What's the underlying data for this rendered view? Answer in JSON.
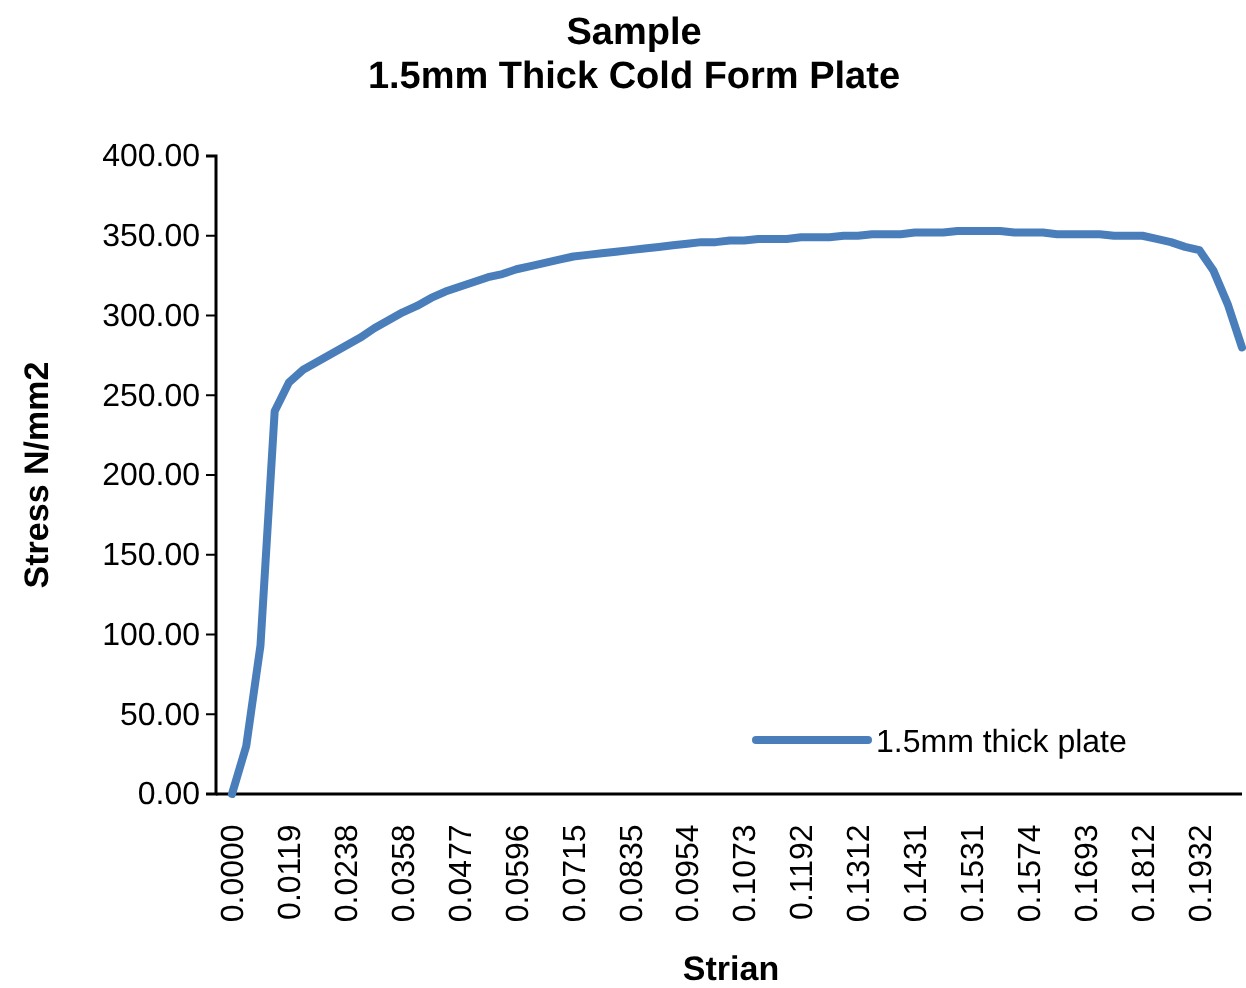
{
  "chart_data": {
    "type": "line",
    "title": "Sample",
    "subtitle": "1.5mm Thick Cold Form Plate",
    "xlabel": "Strian",
    "ylabel": "Stress N/mm2",
    "categories": [
      "0.0000",
      null,
      null,
      null,
      "0.0119",
      null,
      null,
      null,
      "0.0238",
      null,
      null,
      null,
      "0.0358",
      null,
      null,
      null,
      "0.0477",
      null,
      null,
      null,
      "0.0596",
      null,
      null,
      null,
      "0.0715",
      null,
      null,
      null,
      "0.0835",
      null,
      null,
      null,
      "0.0954",
      null,
      null,
      null,
      "0.1073",
      null,
      null,
      null,
      "0.1192",
      null,
      null,
      null,
      "0.1312",
      null,
      null,
      null,
      "0.1431",
      null,
      null,
      null,
      "0.1531",
      null,
      null,
      null,
      "0.1574",
      null,
      null,
      null,
      "0.1693",
      null,
      null,
      null,
      "0.1812",
      null,
      null,
      null,
      "0.1932",
      null,
      null,
      null
    ],
    "series": [
      {
        "name": "1.5mm thick plate",
        "color": "#4a7ebb",
        "values": [
          0,
          30,
          93,
          240,
          258,
          266,
          271,
          276,
          281,
          286,
          292,
          297,
          302,
          306,
          311,
          315,
          318,
          321,
          324,
          326,
          329,
          331,
          333,
          335,
          337,
          338,
          339,
          340,
          341,
          342,
          343,
          344,
          345,
          346,
          346,
          347,
          347,
          348,
          348,
          348,
          349,
          349,
          349,
          350,
          350,
          351,
          351,
          351,
          352,
          352,
          352,
          353,
          353,
          353,
          353,
          352,
          352,
          352,
          351,
          351,
          351,
          351,
          350,
          350,
          350,
          348,
          346,
          343,
          341,
          328,
          307,
          280
        ]
      }
    ],
    "ylim": [
      0,
      400
    ],
    "yticks": [
      {
        "value": 0,
        "label": "0.00"
      },
      {
        "value": 50,
        "label": "50.00"
      },
      {
        "value": 100,
        "label": "100.00"
      },
      {
        "value": 150,
        "label": "150.00"
      },
      {
        "value": 200,
        "label": "200.00"
      },
      {
        "value": 250,
        "label": "250.00"
      },
      {
        "value": 300,
        "label": "300.00"
      },
      {
        "value": 350,
        "label": "350.00"
      },
      {
        "value": 400,
        "label": "400.00"
      }
    ],
    "legend": "bottom right",
    "grid": false,
    "marker": "none",
    "line_style": "solid"
  }
}
